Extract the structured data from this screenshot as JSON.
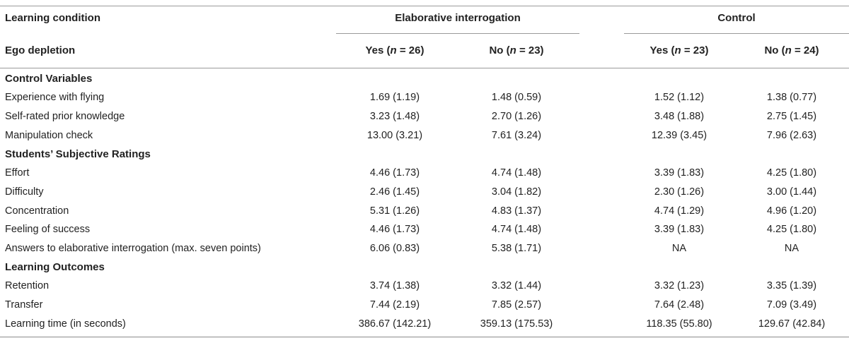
{
  "header": {
    "learning_condition": "Learning condition",
    "group_ei": "Elaborative interrogation",
    "group_control": "Control",
    "ego_depletion": "Ego depletion",
    "columns": [
      {
        "pre": "Yes (",
        "n": "n",
        "post": " = 26)"
      },
      {
        "pre": "No (",
        "n": "n",
        "post": " = 23)"
      },
      {
        "pre": "Yes (",
        "n": "n",
        "post": " = 23)"
      },
      {
        "pre": "No (",
        "n": "n",
        "post": " = 24)"
      }
    ]
  },
  "sections": [
    {
      "title": "Control Variables",
      "rows": [
        {
          "label": "Experience with flying",
          "values": [
            "1.69 (1.19)",
            "1.48 (0.59)",
            "1.52 (1.12)",
            "1.38 (0.77)"
          ]
        },
        {
          "label": "Self-rated prior knowledge",
          "values": [
            "3.23 (1.48)",
            "2.70 (1.26)",
            "3.48 (1.88)",
            "2.75 (1.45)"
          ]
        },
        {
          "label": "Manipulation check",
          "values": [
            "13.00 (3.21)",
            "7.61 (3.24)",
            "12.39 (3.45)",
            "7.96 (2.63)"
          ]
        }
      ]
    },
    {
      "title": "Students’ Subjective Ratings",
      "rows": [
        {
          "label": "Effort",
          "values": [
            "4.46 (1.73)",
            "4.74 (1.48)",
            "3.39 (1.83)",
            "4.25 (1.80)"
          ]
        },
        {
          "label": "Difficulty",
          "values": [
            "2.46 (1.45)",
            "3.04 (1.82)",
            "2.30 (1.26)",
            "3.00 (1.44)"
          ]
        },
        {
          "label": "Concentration",
          "values": [
            "5.31 (1.26)",
            "4.83 (1.37)",
            "4.74 (1.29)",
            "4.96 (1.20)"
          ]
        },
        {
          "label": "Feeling of success",
          "values": [
            "4.46 (1.73)",
            "4.74 (1.48)",
            "3.39 (1.83)",
            "4.25 (1.80)"
          ]
        },
        {
          "label": "Answers to elaborative interrogation (max. seven points)",
          "values": [
            "6.06 (0.83)",
            "5.38 (1.71)",
            "NA",
            "NA"
          ]
        }
      ]
    },
    {
      "title": "Learning Outcomes",
      "rows": [
        {
          "label": "Retention",
          "values": [
            "3.74 (1.38)",
            "3.32 (1.44)",
            "3.32 (1.23)",
            "3.35 (1.39)"
          ]
        },
        {
          "label": "Transfer",
          "values": [
            "7.44 (2.19)",
            "7.85 (2.57)",
            "7.64 (2.48)",
            "7.09 (3.49)"
          ]
        },
        {
          "label": "Learning time (in seconds)",
          "values": [
            "386.67 (142.21)",
            "359.13 (175.53)",
            "118.35 (55.80)",
            "129.67 (42.84)"
          ]
        }
      ]
    }
  ]
}
